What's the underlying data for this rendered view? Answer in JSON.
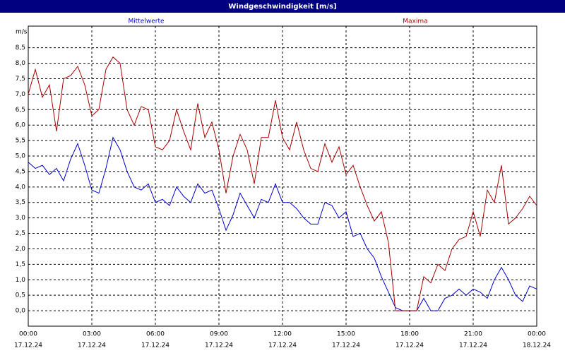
{
  "chart_data": {
    "type": "line",
    "title": "Windgeschwindigkeit [m/s]",
    "y_unit": "m/s",
    "x": [
      0,
      20,
      40,
      60,
      80,
      100,
      120,
      140,
      160,
      180,
      200,
      220,
      240,
      260,
      280,
      300,
      320,
      340,
      360,
      380,
      400,
      420,
      440,
      460,
      480,
      500,
      520,
      540,
      560,
      580,
      600,
      620,
      640,
      660,
      680,
      700,
      720,
      740,
      760,
      780,
      800,
      820,
      840,
      860,
      880,
      900,
      920,
      940,
      960,
      980,
      1000,
      1020,
      1040,
      1060,
      1080,
      1100,
      1120,
      1140,
      1160,
      1180,
      1200,
      1220,
      1240,
      1260,
      1280,
      1300,
      1320,
      1340,
      1360,
      1380,
      1400,
      1420,
      1440
    ],
    "series": [
      {
        "name": "Mittelwerte",
        "color": "#0000cc",
        "values": [
          4.8,
          4.6,
          4.7,
          4.4,
          4.6,
          4.2,
          4.9,
          5.4,
          4.7,
          3.9,
          3.8,
          4.6,
          5.6,
          5.2,
          4.5,
          4.0,
          3.9,
          4.1,
          3.5,
          3.6,
          3.4,
          4.0,
          3.7,
          3.5,
          4.1,
          3.8,
          3.9,
          3.3,
          2.6,
          3.1,
          3.8,
          3.4,
          3.0,
          3.6,
          3.5,
          4.1,
          3.5,
          3.5,
          3.3,
          3.0,
          2.8,
          2.8,
          3.5,
          3.4,
          3.0,
          3.2,
          2.4,
          2.5,
          2.0,
          1.7,
          1.1,
          0.6,
          0.1,
          0.0,
          0.0,
          0.0,
          0.4,
          0.0,
          0.0,
          0.4,
          0.5,
          0.7,
          0.5,
          0.7,
          0.6,
          0.4,
          1.0,
          1.4,
          1.0,
          0.5,
          0.3,
          0.8,
          0.7
        ]
      },
      {
        "name": "Maxima",
        "color": "#aa0000",
        "values": [
          7.0,
          7.8,
          6.9,
          7.3,
          5.8,
          7.5,
          7.6,
          7.9,
          7.3,
          6.3,
          6.5,
          7.8,
          8.2,
          8.0,
          6.5,
          6.0,
          6.6,
          6.5,
          5.3,
          5.2,
          5.5,
          6.5,
          5.8,
          5.2,
          6.7,
          5.6,
          6.1,
          5.2,
          3.8,
          5.0,
          5.7,
          5.2,
          4.1,
          5.6,
          5.6,
          6.8,
          5.6,
          5.2,
          6.1,
          5.2,
          4.6,
          4.5,
          5.4,
          4.8,
          5.3,
          4.4,
          4.7,
          4.0,
          3.4,
          2.9,
          3.2,
          2.2,
          0.0,
          0.0,
          0.0,
          0.0,
          1.1,
          0.9,
          1.5,
          1.3,
          2.0,
          2.3,
          2.4,
          3.2,
          2.4,
          3.9,
          3.5,
          4.7,
          2.8,
          3.0,
          3.3,
          3.7,
          3.4
        ]
      }
    ],
    "xlim": [
      0,
      1440
    ],
    "xticks": [
      {
        "value": 0,
        "label": "00:00",
        "date": "17.12.24"
      },
      {
        "value": 180,
        "label": "03:00",
        "date": "17.12.24"
      },
      {
        "value": 360,
        "label": "06:00",
        "date": "17.12.24"
      },
      {
        "value": 540,
        "label": "09:00",
        "date": "17.12.24"
      },
      {
        "value": 720,
        "label": "12:00",
        "date": "17.12.24"
      },
      {
        "value": 900,
        "label": "15:00",
        "date": "17.12.24"
      },
      {
        "value": 1080,
        "label": "18:00",
        "date": "17.12.24"
      },
      {
        "value": 1260,
        "label": "21:00",
        "date": "17.12.24"
      },
      {
        "value": 1440,
        "label": "00:00",
        "date": "18.12.24"
      }
    ],
    "ylim": [
      -0.5,
      9.2
    ],
    "yticks": [
      {
        "value": 0,
        "label": "0,0"
      },
      {
        "value": 0.5,
        "label": "0,5"
      },
      {
        "value": 1,
        "label": "1,0"
      },
      {
        "value": 1.5,
        "label": "1,5"
      },
      {
        "value": 2,
        "label": "2,0"
      },
      {
        "value": 2.5,
        "label": "2,5"
      },
      {
        "value": 3,
        "label": "3,0"
      },
      {
        "value": 3.5,
        "label": "3,5"
      },
      {
        "value": 4,
        "label": "4,0"
      },
      {
        "value": 4.5,
        "label": "4,5"
      },
      {
        "value": 5,
        "label": "5,0"
      },
      {
        "value": 5.5,
        "label": "5,5"
      },
      {
        "value": 6,
        "label": "6,0"
      },
      {
        "value": 6.5,
        "label": "6,5"
      },
      {
        "value": 7,
        "label": "7,0"
      },
      {
        "value": 7.5,
        "label": "7,5"
      },
      {
        "value": 8,
        "label": "8,0"
      },
      {
        "value": 8.5,
        "label": "8,5"
      }
    ],
    "grid": true
  }
}
